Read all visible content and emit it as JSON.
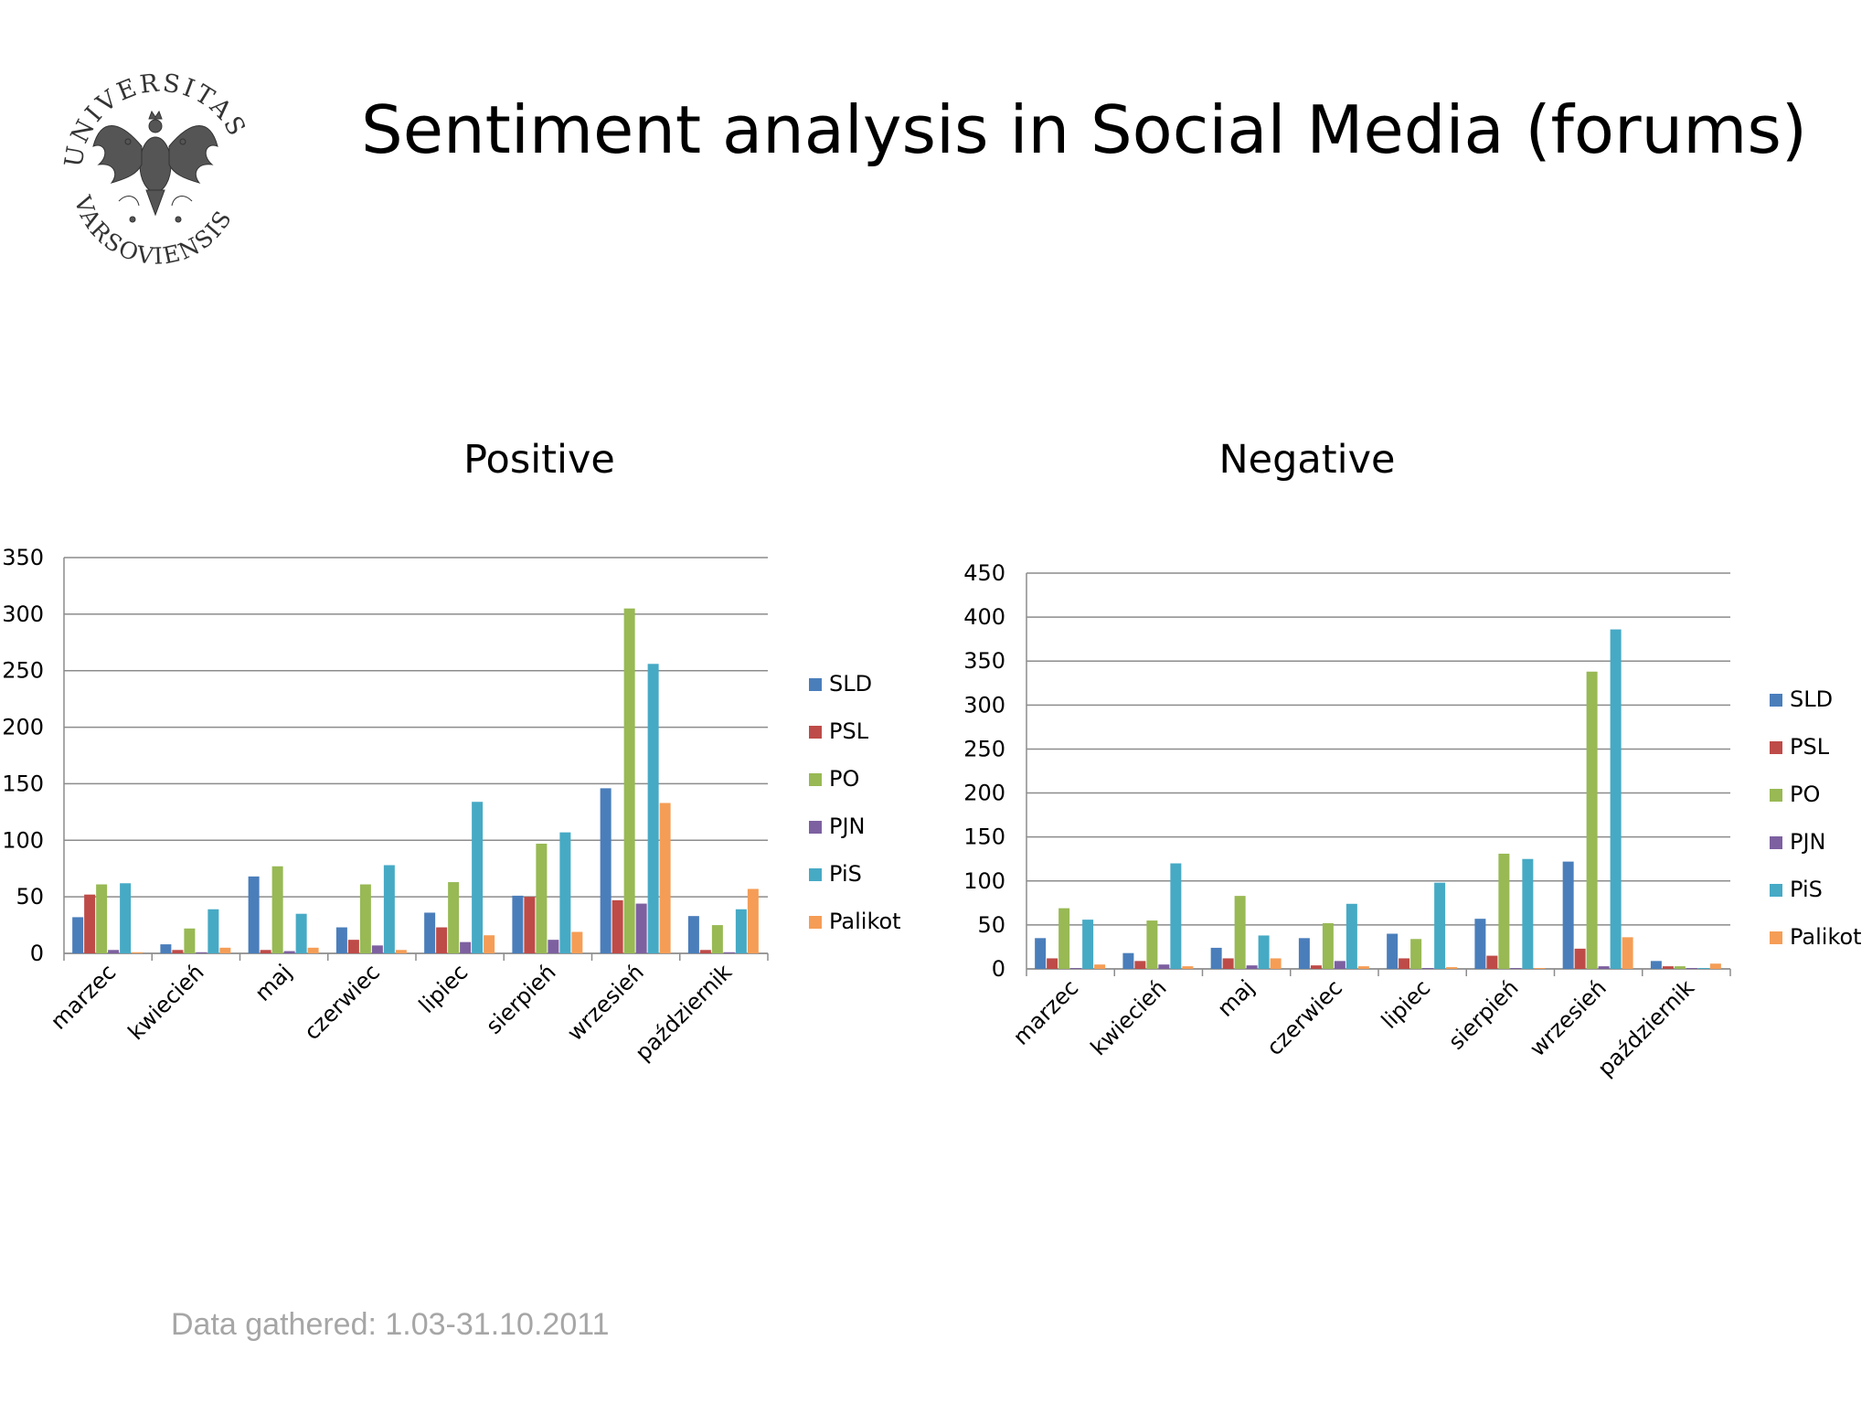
{
  "slide": {
    "title": "Sentiment analysis in Social Media (forums)",
    "footnote": "Data gathered: 1.03-31.10.2011",
    "logo": {
      "top_text": "UNIVERSITAS",
      "bottom_text": "VARSOVIENSIS",
      "icon": "eagle-crest-icon"
    }
  },
  "chart_data": [
    {
      "type": "bar",
      "title": "Positive",
      "categories": [
        "marzec",
        "kwiecień",
        "maj",
        "czerwiec",
        "lipiec",
        "sierpień",
        "wrzesień",
        "październik"
      ],
      "ylim": [
        0,
        350
      ],
      "yticks": [
        0,
        50,
        100,
        150,
        200,
        250,
        300,
        350
      ],
      "grid": true,
      "legend": "right",
      "series": [
        {
          "name": "SLD",
          "color": "#4a7ebb",
          "values": [
            32,
            8,
            68,
            23,
            36,
            51,
            146,
            33
          ]
        },
        {
          "name": "PSL",
          "color": "#be4b48",
          "values": [
            52,
            3,
            3,
            12,
            23,
            50,
            47,
            3
          ]
        },
        {
          "name": "PO",
          "color": "#98b954",
          "values": [
            61,
            22,
            77,
            61,
            63,
            97,
            305,
            25
          ]
        },
        {
          "name": "PJN",
          "color": "#7d60a0",
          "values": [
            3,
            1,
            2,
            7,
            10,
            12,
            44,
            1
          ]
        },
        {
          "name": "PiS",
          "color": "#46aac5",
          "values": [
            62,
            39,
            35,
            78,
            134,
            107,
            256,
            39
          ]
        },
        {
          "name": "Palikot",
          "color": "#f59d56",
          "values": [
            1,
            5,
            5,
            3,
            16,
            19,
            133,
            57
          ]
        }
      ]
    },
    {
      "type": "bar",
      "title": "Negative",
      "categories": [
        "marzec",
        "kwiecień",
        "maj",
        "czerwiec",
        "lipiec",
        "sierpień",
        "wrzesień",
        "październik"
      ],
      "ylim": [
        0,
        450
      ],
      "yticks": [
        0,
        50,
        100,
        150,
        200,
        250,
        300,
        350,
        400,
        450
      ],
      "grid": true,
      "legend": "right",
      "series": [
        {
          "name": "SLD",
          "color": "#4a7ebb",
          "values": [
            35,
            18,
            24,
            35,
            40,
            57,
            122,
            9
          ]
        },
        {
          "name": "PSL",
          "color": "#be4b48",
          "values": [
            12,
            9,
            12,
            4,
            12,
            15,
            23,
            3
          ]
        },
        {
          "name": "PO",
          "color": "#98b954",
          "values": [
            69,
            55,
            83,
            52,
            34,
            131,
            338,
            3
          ]
        },
        {
          "name": "PJN",
          "color": "#7d60a0",
          "values": [
            1,
            5,
            4,
            9,
            1,
            1,
            3,
            1
          ]
        },
        {
          "name": "PiS",
          "color": "#46aac5",
          "values": [
            56,
            120,
            38,
            74,
            98,
            125,
            386,
            1
          ]
        },
        {
          "name": "Palikot",
          "color": "#f59d56",
          "values": [
            5,
            3,
            12,
            3,
            2,
            1,
            36,
            6
          ]
        }
      ]
    }
  ]
}
